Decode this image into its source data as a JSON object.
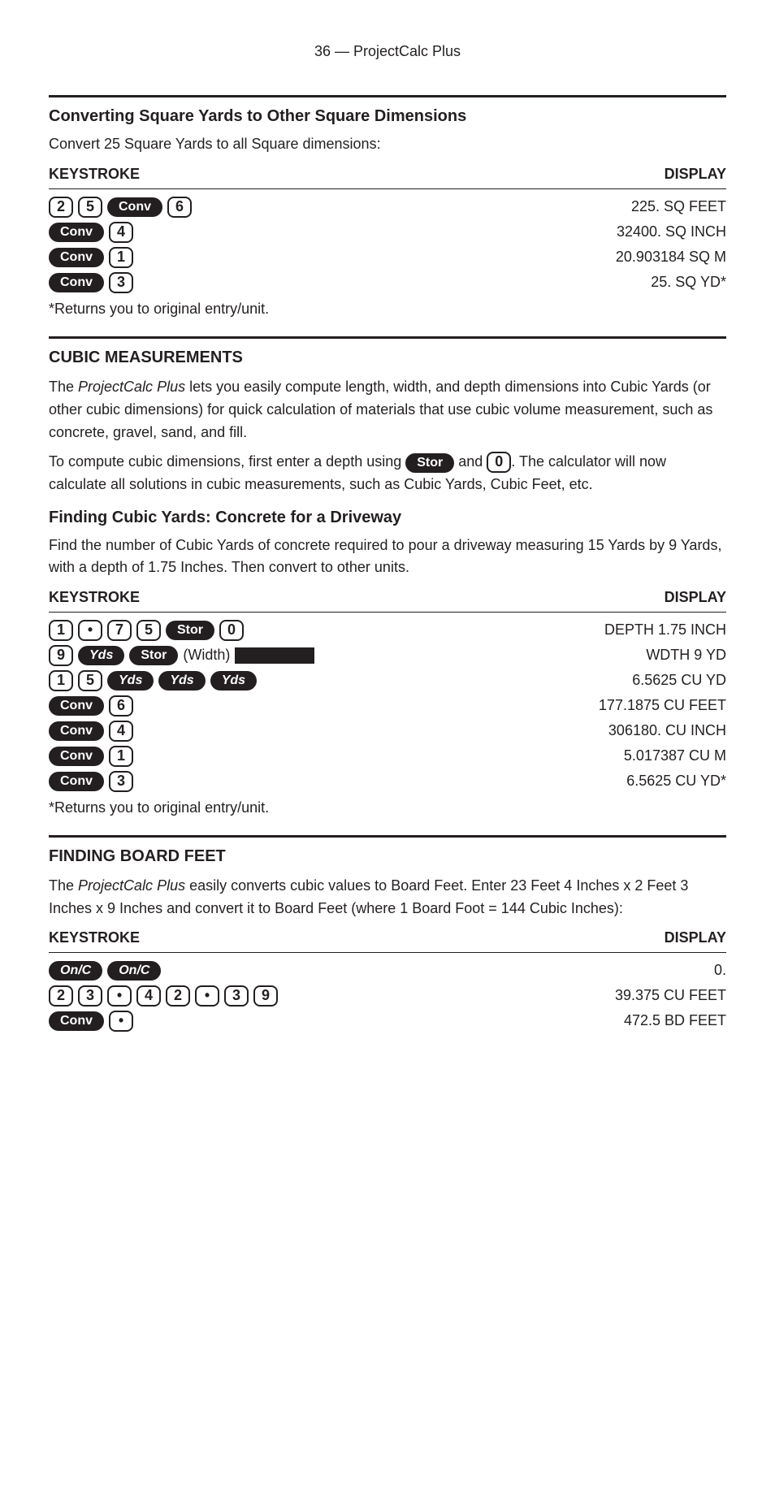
{
  "page_number": "36 — ProjectCalc Plus",
  "example1": {
    "title": "Converting Square Yards to Other Square Dimensions",
    "intro": "Convert 25 Square Yards to all Square dimensions:",
    "header_left": "KEYSTROKE",
    "header_right": "DISPLAY",
    "rows": [
      {
        "keys": [
          [
            "num",
            "2"
          ],
          [
            "num",
            "5"
          ],
          [
            "pill",
            "Conv"
          ],
          [
            "num",
            "6"
          ]
        ],
        "right": "225.  SQ FEET"
      },
      {
        "keys": [
          [
            "pill",
            "Conv"
          ],
          [
            "num",
            "4"
          ]
        ],
        "right": "32400.  SQ INCH"
      },
      {
        "keys": [
          [
            "pill",
            "Conv"
          ],
          [
            "num",
            "1"
          ]
        ],
        "right": "20.903184  SQ  M"
      },
      {
        "keys": [
          [
            "pill",
            "Conv"
          ],
          [
            "num",
            "3"
          ]
        ],
        "right": "25.  SQ  YD",
        "trailing": "*"
      }
    ],
    "footnote": "*Returns you to original entry/unit."
  },
  "cubic": {
    "heading": "CUBIC MEASUREMENTS",
    "para1_prefix": "The ",
    "para1_em": "ProjectCalc Plus",
    "para1_rest": " lets you easily compute length, width, and depth dimensions into Cubic Yards (or other cubic dimensions) for quick calculation of materials that use cubic volume measurement, such as concrete, gravel, sand, and fill.",
    "para2_prefix": "To compute cubic dimensions, first enter a depth using ",
    "para2_stor": "Stor",
    "para2_mid": " and ",
    "para2_zero": "0",
    "para2_rest": ". The calculator will now calculate all solutions in cubic measurements, such as Cubic Yards, Cubic Feet, etc.",
    "sub_title": "Finding Cubic Yards: Concrete for a Driveway",
    "sub_intro": "Find the number of Cubic Yards of concrete required to pour a driveway measuring 15 Yards by 9 Yards, with a depth of 1.75 Inches. Then convert to other units.",
    "sub_header_left": "KEYSTROKE",
    "sub_header_right": "DISPLAY",
    "rows": [
      {
        "keys": [
          [
            "num",
            "1"
          ],
          [
            "num",
            "•"
          ],
          [
            "num",
            "7"
          ],
          [
            "num",
            "5"
          ],
          [
            "pill",
            "Stor"
          ],
          [
            "num",
            "0"
          ]
        ],
        "right": "DEPTH  1.75  INCH"
      },
      {
        "keys": [
          [
            "num",
            "9"
          ],
          [
            "pilli",
            "Yds"
          ],
          [
            "pill",
            "Stor"
          ],
          [
            "text",
            "(Width)"
          ]
        ],
        "bar": true,
        "right": "WDTH  9  YD"
      },
      {
        "keys": [
          [
            "num",
            "1"
          ],
          [
            "num",
            "5"
          ],
          [
            "pilli",
            "Yds"
          ],
          [
            "pilli",
            "Yds"
          ],
          [
            "pilli",
            "Yds"
          ]
        ],
        "right": "6.5625  CU  YD"
      },
      {
        "keys": [
          [
            "pill",
            "Conv"
          ],
          [
            "num",
            "6"
          ]
        ],
        "right": "177.1875  CU FEET"
      },
      {
        "keys": [
          [
            "pill",
            "Conv"
          ],
          [
            "num",
            "4"
          ]
        ],
        "right": "306180.  CU INCH"
      },
      {
        "keys": [
          [
            "pill",
            "Conv"
          ],
          [
            "num",
            "1"
          ]
        ],
        "right": "5.017387  CU  M"
      },
      {
        "keys": [
          [
            "pill",
            "Conv"
          ],
          [
            "num",
            "3"
          ]
        ],
        "right": "6.5625  CU  YD",
        "trailing": "*"
      }
    ],
    "footnote": "*Returns you to original entry/unit."
  },
  "board": {
    "heading": "FINDING BOARD FEET",
    "para_prefix": "The ",
    "para_em": "ProjectCalc Plus",
    "para_rest": " easily converts cubic values to Board Feet. Enter 23 Feet 4 Inches x 2 Feet 3 Inches x 9 Inches and convert it to Board Feet (where 1 Board Foot = 144 Cubic Inches):",
    "header_left": "KEYSTROKE",
    "header_right": "DISPLAY",
    "rows": [
      {
        "keys": [
          [
            "pilli",
            "On/C"
          ],
          [
            "pilli",
            "On/C"
          ]
        ],
        "right": "0."
      },
      {
        "keys": [
          [
            "num",
            "2"
          ],
          [
            "num",
            "3"
          ],
          [
            "num",
            "•"
          ],
          [
            "num",
            "4"
          ],
          [
            "num",
            "2"
          ],
          [
            "num",
            "•"
          ],
          [
            "num",
            "3"
          ],
          [
            "num",
            "9"
          ]
        ],
        "right": "39.375  CU FEET"
      },
      {
        "keys": [
          [
            "pill",
            "Conv"
          ],
          [
            "num",
            "•"
          ]
        ],
        "right": "472.5  BD FEET"
      }
    ]
  }
}
